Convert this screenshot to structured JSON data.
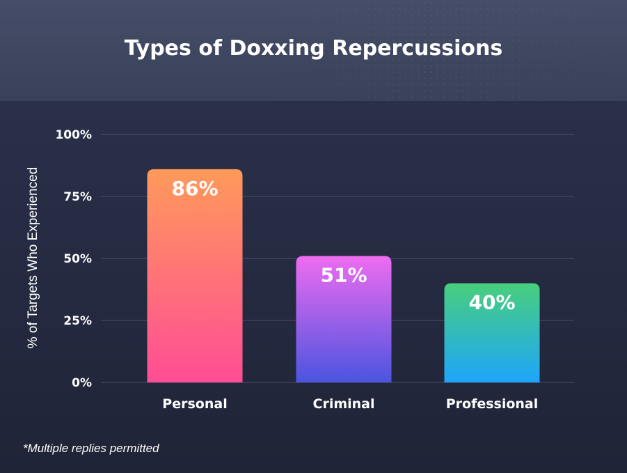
{
  "header": {
    "title": "Types of Doxxing Repercussions"
  },
  "footnote": "*Multiple replies permitted",
  "chart_data": {
    "type": "bar",
    "title": "Types of Doxxing Repercussions",
    "ylabel": "% of Targets Who Experienced",
    "xlabel": "",
    "categories": [
      "Personal",
      "Criminal",
      "Professional"
    ],
    "values": [
      86,
      51,
      40
    ],
    "data_labels": [
      "86%",
      "51%",
      "40%"
    ],
    "ylim": [
      0,
      100
    ],
    "yticks": [
      0,
      25,
      50,
      75,
      100
    ],
    "ytick_labels": [
      "0%",
      "25%",
      "50%",
      "75%",
      "100%"
    ],
    "grid": true,
    "legend": "none",
    "colors": [
      {
        "top": "#ff9a5a",
        "bottom": "#ff4d95"
      },
      {
        "top": "#ee6cf0",
        "bottom": "#4b54e0"
      },
      {
        "top": "#48cf7c",
        "bottom": "#1ea5fb"
      }
    ],
    "grid_color": "#4a5068",
    "text_color": "#ffffff"
  }
}
